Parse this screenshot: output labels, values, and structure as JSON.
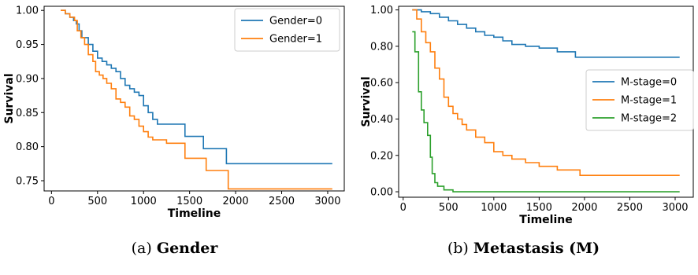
{
  "chart_data": [
    {
      "type": "line",
      "step": true,
      "xlabel": "Timeline",
      "ylabel": "Survival",
      "xlim": [
        -80,
        3180
      ],
      "ylim": [
        0.735,
        1.006
      ],
      "xticks": [
        0,
        500,
        1000,
        1500,
        2000,
        2500,
        3000
      ],
      "xtick_labels": [
        "0",
        "500",
        "1000",
        "1500",
        "2000",
        "2500",
        "3000"
      ],
      "yticks": [
        0.75,
        0.8,
        0.85,
        0.9,
        0.95,
        1.0
      ],
      "ytick_labels": [
        "0.75",
        "0.80",
        "0.85",
        "0.90",
        "0.95",
        "1.00"
      ],
      "legend_position": "top-right",
      "caption_prefix": "(a)",
      "caption": "Gender",
      "series": [
        {
          "name": "Gender=0",
          "color": "#1f77b4",
          "x": [
            100,
            150,
            200,
            240,
            270,
            300,
            330,
            400,
            450,
            500,
            550,
            600,
            650,
            700,
            750,
            800,
            850,
            900,
            950,
            1000,
            1050,
            1100,
            1150,
            1450,
            1650,
            1900,
            3050
          ],
          "y": [
            1.0,
            0.995,
            0.99,
            0.985,
            0.98,
            0.97,
            0.96,
            0.95,
            0.94,
            0.93,
            0.925,
            0.92,
            0.915,
            0.91,
            0.9,
            0.89,
            0.885,
            0.88,
            0.875,
            0.86,
            0.85,
            0.84,
            0.833,
            0.815,
            0.797,
            0.775,
            0.775
          ]
        },
        {
          "name": "Gender=1",
          "color": "#ff7f0e",
          "x": [
            100,
            150,
            200,
            250,
            280,
            320,
            360,
            400,
            450,
            480,
            520,
            560,
            600,
            650,
            700,
            750,
            800,
            850,
            900,
            950,
            1000,
            1050,
            1100,
            1250,
            1450,
            1680,
            1920,
            3050
          ],
          "y": [
            1.0,
            0.995,
            0.99,
            0.985,
            0.97,
            0.96,
            0.95,
            0.935,
            0.925,
            0.91,
            0.905,
            0.9,
            0.893,
            0.885,
            0.87,
            0.865,
            0.858,
            0.845,
            0.84,
            0.83,
            0.822,
            0.814,
            0.81,
            0.805,
            0.783,
            0.765,
            0.738,
            0.738
          ]
        }
      ]
    },
    {
      "type": "line",
      "step": true,
      "xlabel": "Timeline",
      "ylabel": "Survival",
      "xlim": [
        -50,
        3200
      ],
      "ylim": [
        -0.03,
        1.02
      ],
      "xticks": [
        0,
        500,
        1000,
        1500,
        2000,
        2500,
        3000
      ],
      "xtick_labels": [
        "0",
        "500",
        "1000",
        "1500",
        "2000",
        "2500",
        "3000"
      ],
      "yticks": [
        0.0,
        0.2,
        0.4,
        0.6,
        0.8,
        1.0
      ],
      "ytick_labels": [
        "0.00",
        "0.20",
        "0.40",
        "0.60",
        "0.80",
        "1.00"
      ],
      "legend_position": "center-right",
      "caption_prefix": "(b)",
      "caption": "Metastasis (M)",
      "series": [
        {
          "name": "M-stage=0",
          "color": "#1f77b4",
          "x": [
            100,
            200,
            300,
            400,
            500,
            600,
            700,
            800,
            900,
            1000,
            1100,
            1200,
            1350,
            1500,
            1700,
            1900,
            3050
          ],
          "y": [
            1.0,
            0.99,
            0.98,
            0.96,
            0.94,
            0.92,
            0.9,
            0.88,
            0.86,
            0.85,
            0.83,
            0.81,
            0.8,
            0.79,
            0.77,
            0.74,
            0.74
          ]
        },
        {
          "name": "M-stage=1",
          "color": "#ff7f0e",
          "x": [
            100,
            150,
            200,
            250,
            300,
            350,
            400,
            450,
            500,
            550,
            600,
            650,
            700,
            800,
            900,
            1000,
            1100,
            1200,
            1350,
            1500,
            1700,
            1950,
            3050
          ],
          "y": [
            1.0,
            0.95,
            0.88,
            0.82,
            0.77,
            0.68,
            0.62,
            0.52,
            0.47,
            0.43,
            0.4,
            0.37,
            0.34,
            0.3,
            0.27,
            0.22,
            0.2,
            0.18,
            0.16,
            0.14,
            0.12,
            0.09,
            0.09
          ]
        },
        {
          "name": "M-stage=2",
          "color": "#2ca02c",
          "x": [
            100,
            130,
            170,
            200,
            230,
            270,
            300,
            320,
            350,
            380,
            450,
            550,
            3050
          ],
          "y": [
            0.88,
            0.77,
            0.55,
            0.45,
            0.38,
            0.31,
            0.19,
            0.1,
            0.05,
            0.03,
            0.01,
            0.0,
            0.0
          ]
        }
      ]
    }
  ]
}
